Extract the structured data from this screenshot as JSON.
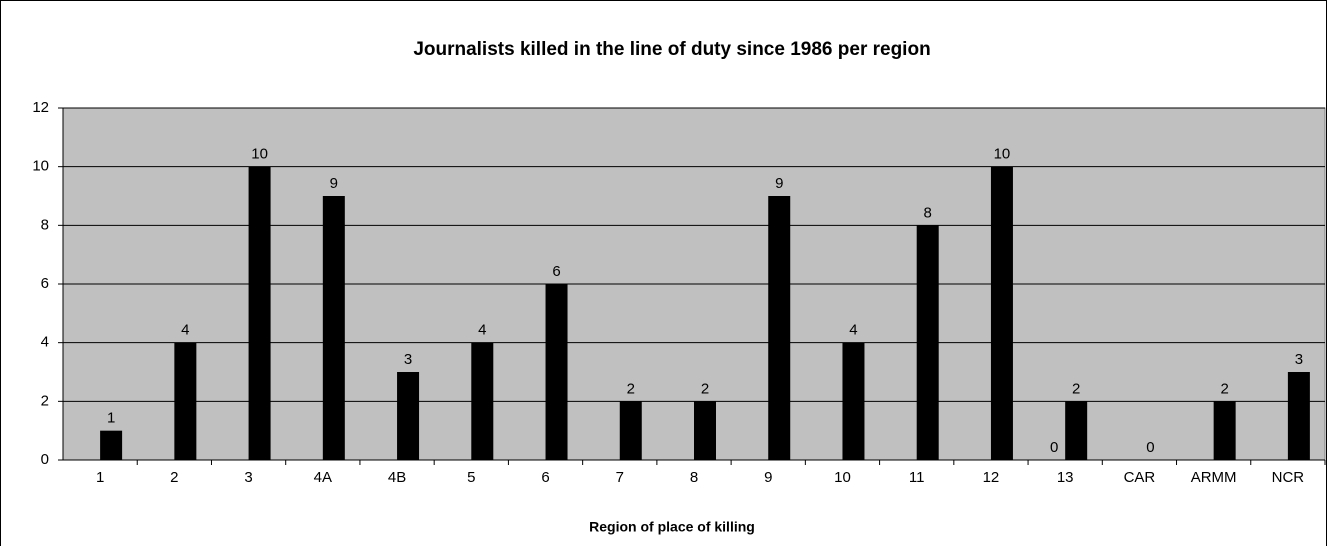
{
  "chart_data": {
    "type": "bar",
    "title": "Journalists killed in the line of duty since 1986 per region",
    "x_label": "Region of place of killing",
    "categories": [
      "1",
      "2",
      "3",
      "4A",
      "4B",
      "5",
      "6",
      "7",
      "8",
      "9",
      "10",
      "11",
      "12",
      "13",
      "CAR",
      "ARMM",
      "NCR"
    ],
    "series": [
      {
        "color": "#000000",
        "values": [
          null,
          null,
          null,
          null,
          null,
          null,
          null,
          null,
          null,
          null,
          null,
          null,
          null,
          0,
          null,
          null,
          null
        ]
      },
      {
        "color": "#000000",
        "values": [
          1,
          4,
          10,
          9,
          3,
          4,
          6,
          2,
          2,
          9,
          4,
          8,
          10,
          2,
          0,
          2,
          3
        ]
      }
    ],
    "ylim": [
      0,
      12
    ],
    "yticks": [
      0,
      2,
      4,
      6,
      8,
      10,
      12
    ],
    "grid": true,
    "plot_background": "#c0c0c0"
  }
}
